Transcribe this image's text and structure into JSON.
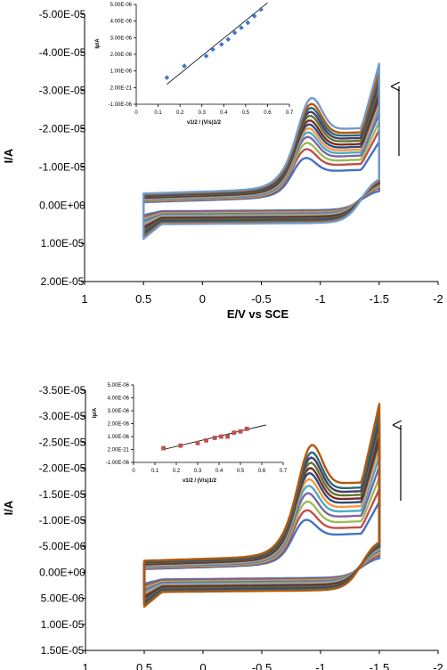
{
  "chart_data": [
    {
      "type": "line",
      "xlabel": "E/V vs SCE",
      "ylabel": "I/A",
      "xlim": [
        1,
        -2
      ],
      "ylim": [
        2e-05,
        -5e-05
      ],
      "x_ticks": [
        "1",
        "0.5",
        "0",
        "-0.5",
        "-1",
        "-1.5",
        "-2"
      ],
      "y_ticks": [
        "-5.00E-05",
        "-4.00E-05",
        "-3.00E-05",
        "-2.00E-05",
        "-1.00E-05",
        "0.00E+00",
        "1.00E-05",
        "2.00E-05"
      ],
      "grid": false,
      "annotation": "arrow pointing up (increasing scan rate)",
      "cv_peak_currents": [
        -1.2e-05,
        -1.45e-05,
        -1.62e-05,
        -1.78e-05,
        -1.9e-05,
        -2e-05,
        -2.1e-05,
        -2.2e-05,
        -2.32e-05,
        -2.42e-05,
        -2.52e-05,
        -2.62e-05,
        -2.78e-05
      ],
      "inset": {
        "type": "scatter",
        "xlabel": "v1/2 / (V/s)1/2",
        "ylabel": "Ip/A",
        "xlim": [
          0,
          0.7
        ],
        "ylim": [
          -1e-06,
          5e-06
        ],
        "x_ticks": [
          "0",
          "0.1",
          "0.2",
          "0.3",
          "0.4",
          "0.5",
          "0.6",
          "0.7"
        ],
        "y_ticks": [
          "5.00E-06",
          "4.00E-06",
          "3.00E-06",
          "2.00E-06",
          "1.00E-06",
          "2.00E-21",
          "-1.00E-06"
        ],
        "marker_color": "#4472c4",
        "x": [
          0.14,
          0.22,
          0.32,
          0.35,
          0.39,
          0.42,
          0.45,
          0.48,
          0.51,
          0.54,
          0.57
        ],
        "y": [
          6e-07,
          1.3e-06,
          1.9e-06,
          2.3e-06,
          2.6e-06,
          2.9e-06,
          3.3e-06,
          3.6e-06,
          3.9e-06,
          4.3e-06,
          4.7e-06
        ],
        "fit_line": [
          [
            0.14,
            2e-07
          ],
          [
            0.6,
            5.1e-06
          ]
        ]
      }
    },
    {
      "type": "line",
      "xlabel": "E/V vs SCE",
      "ylabel": "I/A",
      "xlim": [
        1,
        -2
      ],
      "ylim": [
        1.5e-05,
        -3.5e-05
      ],
      "x_ticks": [
        "1",
        "0.5",
        "0",
        "-0.5",
        "-1",
        "-1.5",
        "-2"
      ],
      "y_ticks": [
        "-3.50E-05",
        "-3.00E-05",
        "-2.50E-05",
        "-2.00E-05",
        "-1.50E-05",
        "-1.00E-05",
        "-5.00E-06",
        "0.00E+00",
        "5.00E-06",
        "1.00E-05",
        "1.50E-05"
      ],
      "grid": false,
      "annotation": "arrow pointing up (increasing scan rate)",
      "cv_peak_currents": [
        -1e-05,
        -1.2e-05,
        -1.38e-05,
        -1.55e-05,
        -1.7e-05,
        -1.83e-05,
        -1.95e-05,
        -2.05e-05,
        -2.15e-05,
        -2.25e-05,
        -2.35e-05,
        -2.5e-05
      ],
      "inset": {
        "type": "scatter",
        "xlabel": "v1/2 / (V/s)1/2",
        "ylabel": "Ip/A",
        "xlim": [
          0,
          0.7
        ],
        "ylim": [
          -1e-06,
          5e-06
        ],
        "x_ticks": [
          "0",
          "0.1",
          "0.2",
          "0.3",
          "0.4",
          "0.5",
          "0.6",
          "0.7"
        ],
        "y_ticks": [
          "5.00E-06",
          "4.00E-06",
          "3.00E-06",
          "2.00E-06",
          "1.00E-06",
          "2.00E-21",
          "-1.00E-06"
        ],
        "marker_color": "#c0504d",
        "x": [
          0.14,
          0.22,
          0.3,
          0.34,
          0.38,
          0.41,
          0.44,
          0.47,
          0.5,
          0.53
        ],
        "y": [
          1e-07,
          3e-07,
          5e-07,
          7e-07,
          9e-07,
          1e-06,
          1e-06,
          1.3e-06,
          1.4e-06,
          1.6e-06
        ],
        "fit_line": [
          [
            0.14,
            0.0
          ],
          [
            0.62,
            1.9e-06
          ]
        ]
      }
    }
  ],
  "colors": {
    "cv_series": [
      "#4472c4",
      "#c0504d",
      "#9bbb59",
      "#8064a2",
      "#4bacc6",
      "#f79646",
      "#2c4d75",
      "#772c2a",
      "#5f7530",
      "#4d3b62",
      "#276a7c",
      "#b65708",
      "#729aca",
      "#d99694"
    ]
  }
}
